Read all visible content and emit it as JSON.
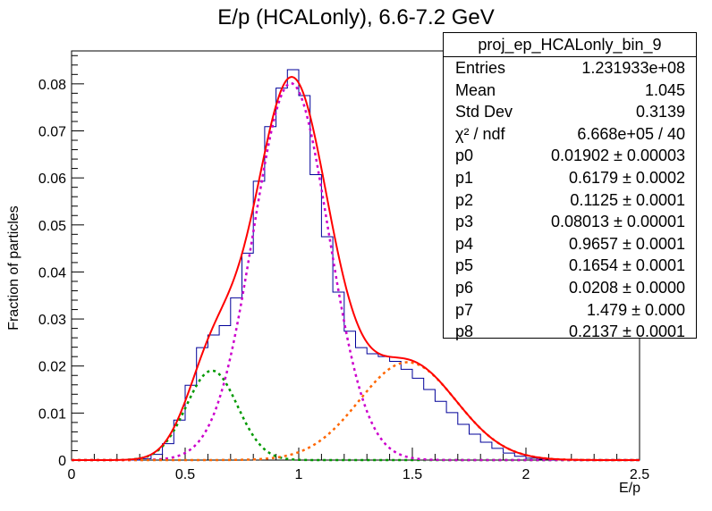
{
  "chart_data": {
    "type": "histogram",
    "title": "E/p (HCALonly), 6.6-7.2 GeV",
    "xlabel": "E/p",
    "ylabel": "Fraction of particles",
    "xlim": [
      0,
      2.5
    ],
    "ylim": [
      0,
      0.087
    ],
    "xticks": [
      "0",
      "0.5",
      "1",
      "1.5",
      "2",
      "2.5"
    ],
    "yticks": [
      "0",
      "0.01",
      "0.02",
      "0.03",
      "0.04",
      "0.05",
      "0.06",
      "0.07",
      "0.08"
    ],
    "histogram": {
      "bin_width": 0.05,
      "x_start": 0,
      "values": [
        0,
        0,
        0,
        0,
        0,
        0,
        0.0003,
        0.0012,
        0.0035,
        0.0085,
        0.0159,
        0.0239,
        0.0266,
        0.0286,
        0.0345,
        0.044,
        0.0593,
        0.0709,
        0.0791,
        0.083,
        0.0775,
        0.0607,
        0.0475,
        0.0357,
        0.0274,
        0.0239,
        0.0226,
        0.022,
        0.021,
        0.0193,
        0.0174,
        0.015,
        0.0125,
        0.0101,
        0.0076,
        0.0055,
        0.0038,
        0.0025,
        0.0015,
        0.0008,
        0.0004,
        0.0002,
        0,
        0,
        0,
        0,
        0,
        0,
        0,
        0
      ]
    },
    "fit_params": {
      "p0": 0.01902,
      "p1": 0.6179,
      "p2": 0.1125,
      "p3": 0.08013,
      "p4": 0.9657,
      "p5": 0.1654,
      "p6": 0.0208,
      "p7": 1.479,
      "p8": 0.2137
    },
    "series": [
      {
        "name": "total fit",
        "color": "#ff0000",
        "style": "solid",
        "components": [
          1,
          2,
          3
        ]
      },
      {
        "name": "gaussian 1",
        "color": "#009900",
        "style": "dotted",
        "params": [
          "p0",
          "p1",
          "p2"
        ]
      },
      {
        "name": "gaussian 2",
        "color": "#cc00cc",
        "style": "dotted",
        "params": [
          "p3",
          "p4",
          "p5"
        ]
      },
      {
        "name": "gaussian 3",
        "color": "#ff6600",
        "style": "dotted",
        "params": [
          "p6",
          "p7",
          "p8"
        ]
      }
    ],
    "histogram_color": "#000099",
    "grid": false,
    "legend": "top-right"
  },
  "stats": {
    "title": "proj_ep_HCALonly_bin_9",
    "rows": [
      {
        "name": "Entries",
        "value": "1.231933e+08"
      },
      {
        "name": "Mean",
        "value": "1.045"
      },
      {
        "name": "Std Dev",
        "value": "0.3139"
      },
      {
        "name": "χ² / ndf",
        "value": "6.668e+05 / 40"
      },
      {
        "name": "p0",
        "value": "0.01902 ± 0.00003"
      },
      {
        "name": "p1",
        "value": "0.6179 ± 0.0002"
      },
      {
        "name": "p2",
        "value": "0.1125 ± 0.0001"
      },
      {
        "name": "p3",
        "value": "0.08013 ± 0.00001"
      },
      {
        "name": "p4",
        "value": "0.9657 ± 0.0001"
      },
      {
        "name": "p5",
        "value": "0.1654 ± 0.0001"
      },
      {
        "name": "p6",
        "value": "0.0208 ± 0.0000"
      },
      {
        "name": "p7",
        "value": "1.479 ± 0.000"
      },
      {
        "name": "p8",
        "value": "0.2137 ± 0.0001"
      }
    ]
  }
}
